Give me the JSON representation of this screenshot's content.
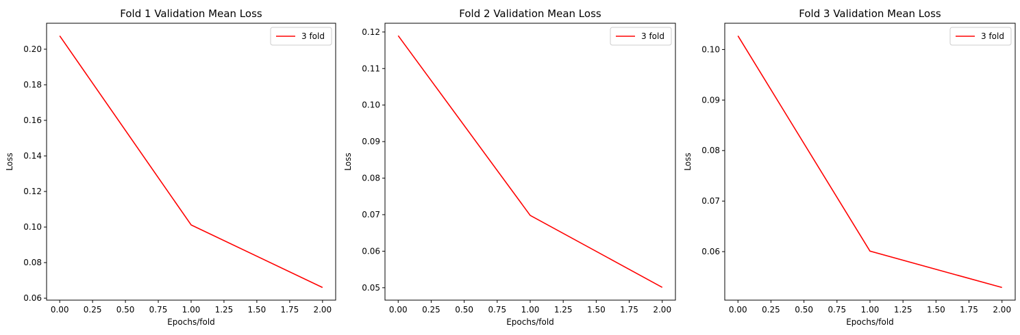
{
  "chart_data": [
    {
      "type": "line",
      "title": "Fold 1 Validation Mean Loss",
      "xlabel": "Epochs/fold",
      "ylabel": "Loss",
      "x": [
        0,
        1,
        2
      ],
      "series": [
        {
          "name": "3 fold",
          "color": "#ff0000",
          "values": [
            0.2075,
            0.1012,
            0.066
          ]
        }
      ],
      "xlim": [
        -0.1,
        2.1
      ],
      "ylim": [
        0.0589,
        0.2146
      ],
      "xticks": [
        0.0,
        0.25,
        0.5,
        0.75,
        1.0,
        1.25,
        1.5,
        1.75,
        2.0
      ],
      "xtick_labels": [
        "0.00",
        "0.25",
        "0.50",
        "0.75",
        "1.00",
        "1.25",
        "1.50",
        "1.75",
        "2.00"
      ],
      "yticks": [
        0.06,
        0.08,
        0.1,
        0.12,
        0.14,
        0.16,
        0.18,
        0.2
      ],
      "ytick_labels": [
        "0.06",
        "0.08",
        "0.10",
        "0.12",
        "0.14",
        "0.16",
        "0.18",
        "0.20"
      ],
      "grid": false,
      "legend_position": "upper right"
    },
    {
      "type": "line",
      "title": "Fold 2 Validation Mean Loss",
      "xlabel": "Epochs/fold",
      "ylabel": "Loss",
      "x": [
        0,
        1,
        2
      ],
      "series": [
        {
          "name": "3 fold",
          "color": "#ff0000",
          "values": [
            0.119,
            0.0698,
            0.0501
          ]
        }
      ],
      "xlim": [
        -0.1,
        2.1
      ],
      "ylim": [
        0.0466,
        0.1224
      ],
      "xticks": [
        0.0,
        0.25,
        0.5,
        0.75,
        1.0,
        1.25,
        1.5,
        1.75,
        2.0
      ],
      "xtick_labels": [
        "0.00",
        "0.25",
        "0.50",
        "0.75",
        "1.00",
        "1.25",
        "1.50",
        "1.75",
        "2.00"
      ],
      "yticks": [
        0.05,
        0.06,
        0.07,
        0.08,
        0.09,
        0.1,
        0.11,
        0.12
      ],
      "ytick_labels": [
        "0.05",
        "0.06",
        "0.07",
        "0.08",
        "0.09",
        "0.10",
        "0.11",
        "0.12"
      ],
      "grid": false,
      "legend_position": "upper right"
    },
    {
      "type": "line",
      "title": "Fold 3 Validation Mean Loss",
      "xlabel": "Epochs/fold",
      "ylabel": "Loss",
      "x": [
        0,
        1,
        2
      ],
      "series": [
        {
          "name": "3 fold",
          "color": "#ff0000",
          "values": [
            0.1027,
            0.0601,
            0.0529
          ]
        }
      ],
      "xlim": [
        -0.1,
        2.1
      ],
      "ylim": [
        0.0504,
        0.1052
      ],
      "xticks": [
        0.0,
        0.25,
        0.5,
        0.75,
        1.0,
        1.25,
        1.5,
        1.75,
        2.0
      ],
      "xtick_labels": [
        "0.00",
        "0.25",
        "0.50",
        "0.75",
        "1.00",
        "1.25",
        "1.50",
        "1.75",
        "2.00"
      ],
      "yticks": [
        0.06,
        0.07,
        0.08,
        0.09,
        0.1
      ],
      "ytick_labels": [
        "0.06",
        "0.07",
        "0.08",
        "0.09",
        "0.10"
      ],
      "grid": false,
      "legend_position": "upper right"
    }
  ]
}
